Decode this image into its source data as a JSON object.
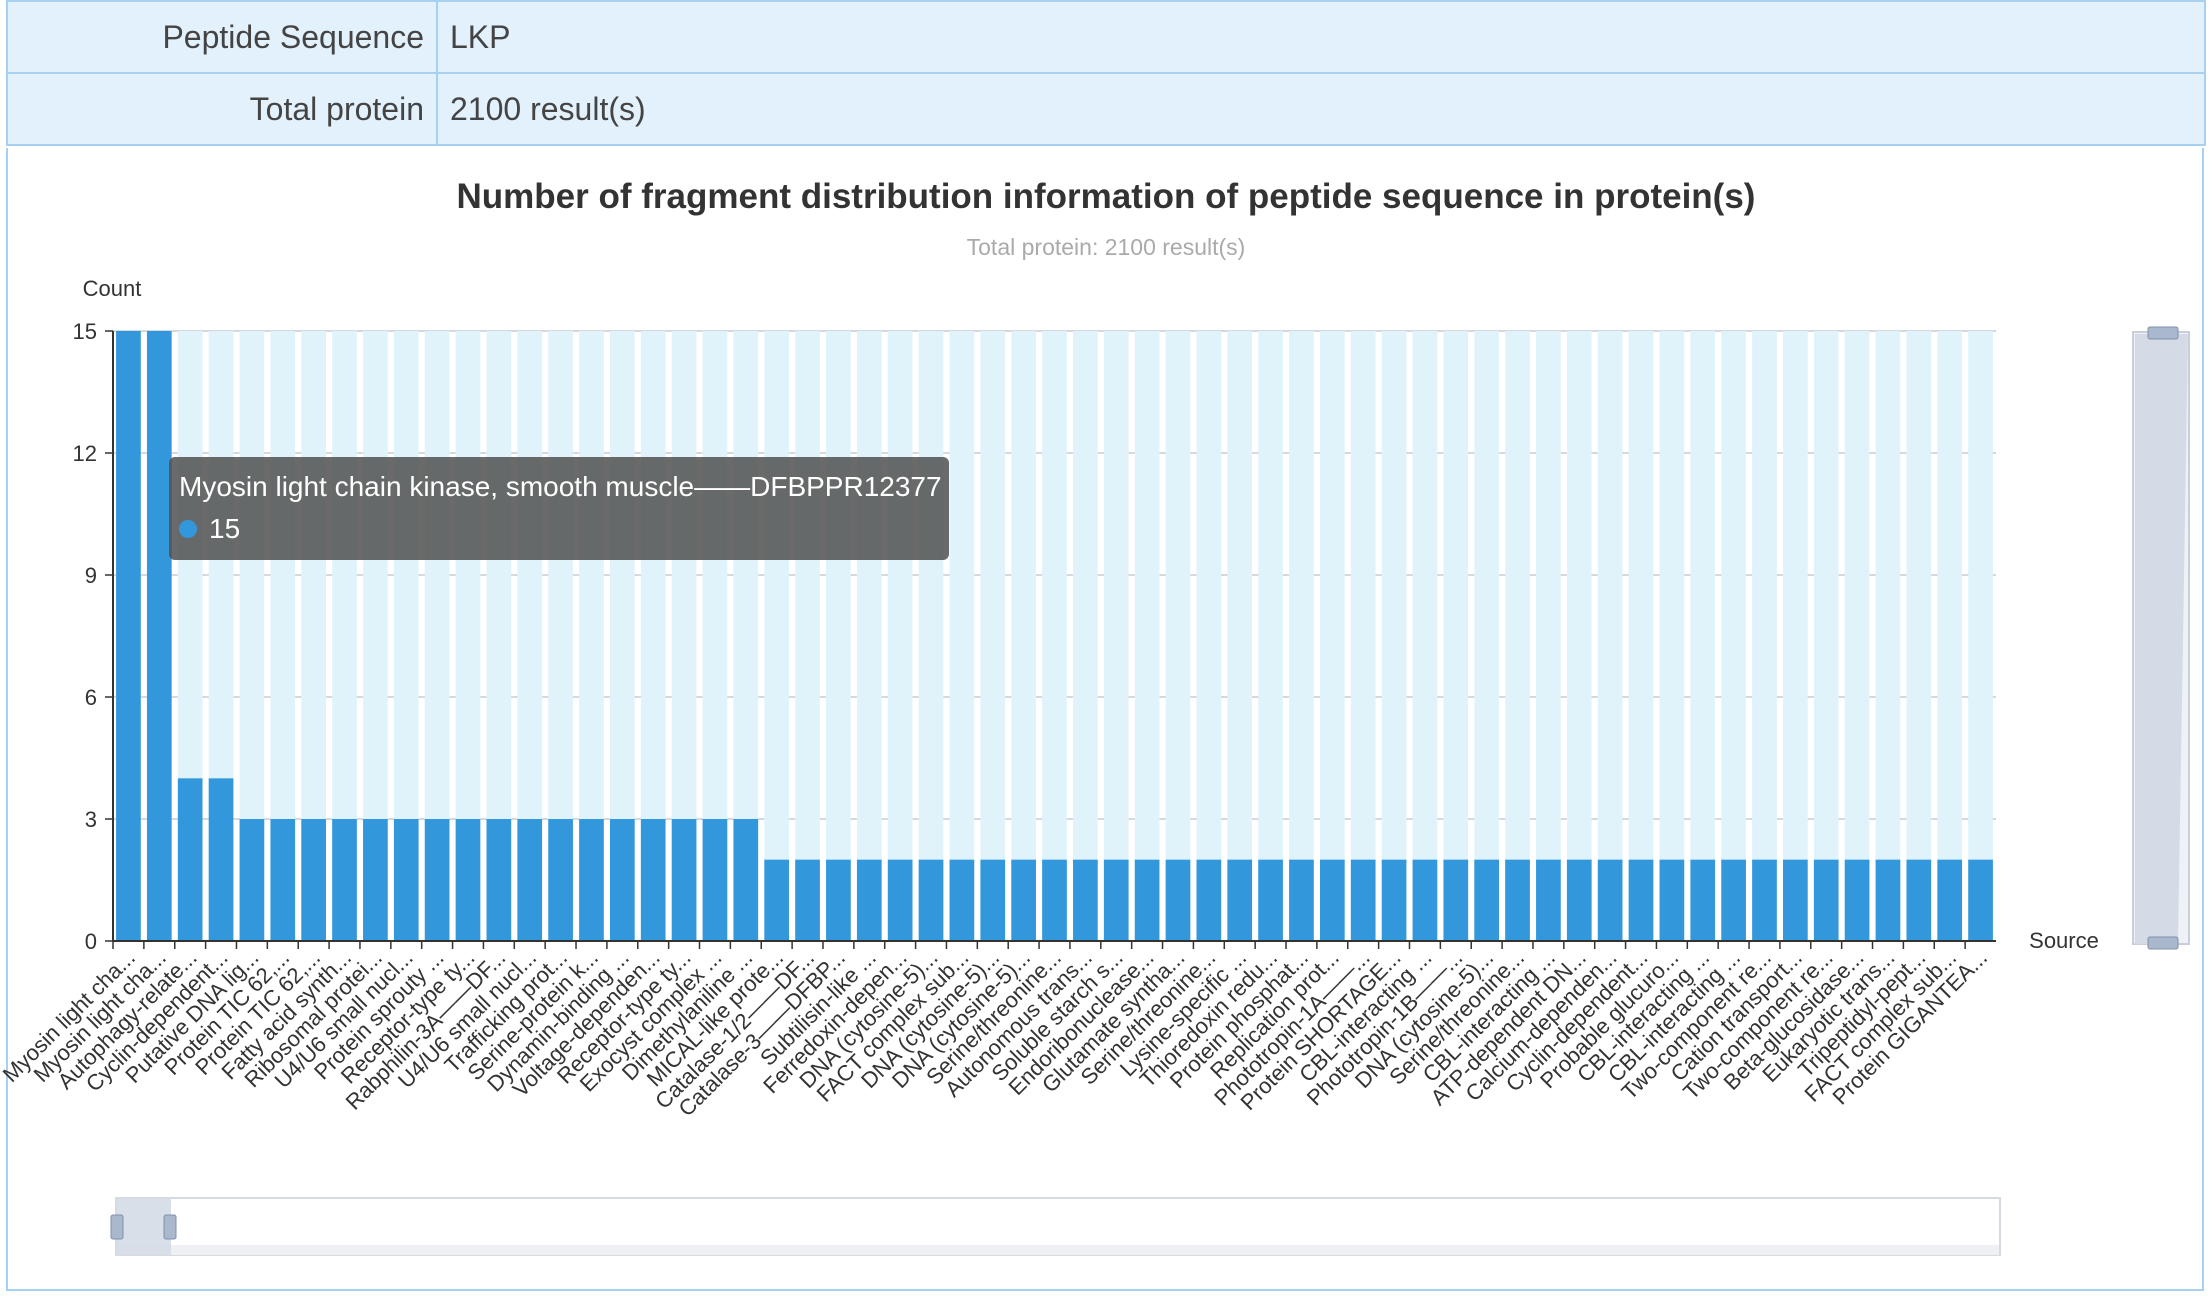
{
  "info": {
    "rows": [
      {
        "key": "Peptide Sequence",
        "value": "LKP"
      },
      {
        "key": "Total protein",
        "value": "2100 result(s)"
      }
    ]
  },
  "chart_data": {
    "type": "bar",
    "title": "Number of fragment distribution information of peptide sequence in protein(s)",
    "subtitle": "Total protein: 2100 result(s)",
    "ylabel": "Count",
    "xlabel": "Source",
    "ylim": [
      0,
      15
    ],
    "yticks": [
      0,
      3,
      6,
      9,
      12,
      15
    ],
    "grid": true,
    "bar_color": "#3398db",
    "shadow_color": "#e0f3fb",
    "categories": [
      "Myosin light cha...",
      "Myosin light cha...",
      "Autophagy-relate...",
      "Cyclin-dependent...",
      "Putative DNA lig...",
      "Protein TIC 62,...",
      "Protein TIC 62,...",
      "Fatty acid synth...",
      "Ribosomal protei...",
      "U4/U6 small nucl...",
      "Protein sprouty ...",
      "Receptor-type ty...",
      "Rabphilin-3A——DF...",
      "U4/U6 small nucl...",
      "Trafficking prot...",
      "Serine-protein k...",
      "Dynamin-binding ...",
      "Voltage-dependen...",
      "Receptor-type ty...",
      "Exocyst complex ...",
      "Dimethylaniline ...",
      "MICAL-like prote...",
      "Catalase-1/2——DF...",
      "Catalase-3——DFBP...",
      "Subtilisin-like ...",
      "Ferredoxin-depen...",
      "DNA (cytosine-5)...",
      "FACT complex sub...",
      "DNA (cytosine-5)...",
      "DNA (cytosine-5)...",
      "Serine/threonine...",
      "Autonomous trans...",
      "Soluble starch s...",
      "Endoribonuclease...",
      "Glutamate syntha...",
      "Serine/threonine...",
      "Lysine-specific ...",
      "Thioredoxin redu...",
      "Protein phosphat...",
      "Replication prot...",
      "Phototropin-1A——...",
      "Protein SHORTAGE...",
      "CBL-interacting ...",
      "Phototropin-1B——...",
      "DNA (cytosine-5)...",
      "Serine/threonine...",
      "CBL-interacting ...",
      "ATP-dependent DN...",
      "Calcium-dependen...",
      "Cyclin-dependent...",
      "Probable glucuro...",
      "CBL-interacting ...",
      "CBL-interacting ...",
      "Two-component re...",
      "Cation transport...",
      "Two-component re...",
      "Beta-glucosidase...",
      "Eukaryotic trans...",
      "Tripeptidyl-pept...",
      "FACT complex sub...",
      "Protein GIGANTEA..."
    ],
    "values": [
      15,
      15,
      4,
      4,
      3,
      3,
      3,
      3,
      3,
      3,
      3,
      3,
      3,
      3,
      3,
      3,
      3,
      3,
      3,
      3,
      3,
      2,
      2,
      2,
      2,
      2,
      2,
      2,
      2,
      2,
      2,
      2,
      2,
      2,
      2,
      2,
      2,
      2,
      2,
      2,
      2,
      2,
      2,
      2,
      2,
      2,
      2,
      2,
      2,
      2,
      2,
      2,
      2,
      2,
      2,
      2,
      2,
      2,
      2,
      2,
      2
    ]
  },
  "tooltip": {
    "title": "Myosin light chain kinase, smooth muscle——DFBPPR12377",
    "value": "15",
    "dot_color": "#3398db"
  },
  "colors": {
    "table_bg": "#e2f1fc",
    "table_border": "#a8d0f0",
    "zoom_fill": "#d4dbe6"
  }
}
